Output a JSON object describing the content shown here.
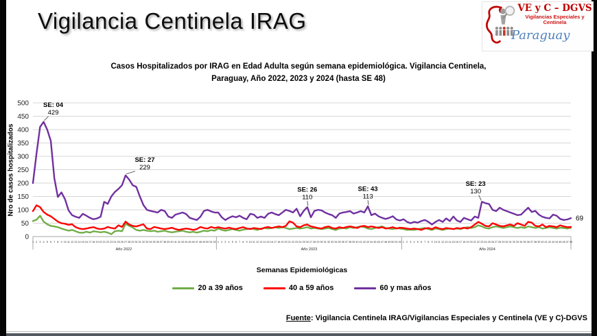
{
  "page": {
    "title": "Vigilancia Centinela IRAG",
    "logo": {
      "line1": "VE y C – DGVS",
      "line2": "Vigilancias Especiales y Centinela",
      "line3": "Paraguay"
    },
    "footer": {
      "label": "Fuente",
      "rest": ": Vigilancia  Centinela IRAG/Vigilancias Especiales y Centinela (VE y C)-DGVS"
    }
  },
  "chart_data": {
    "type": "line",
    "title_lines": [
      "Casos Hospitalizados por IRAG en Edad Adulta según semana epidemiológica. Vigilancia Centinela,",
      "Paraguay, Año 2022, 2023 y 2024 (hasta SE 48)"
    ],
    "ylabel": "Nro de casos hospitalizados",
    "xlabel": "Semanas Epidemiológicas",
    "ylim": [
      0,
      500
    ],
    "yticks": [
      0,
      50,
      100,
      150,
      200,
      250,
      300,
      350,
      400,
      450,
      500
    ],
    "grid": true,
    "legend_position": "bottom",
    "x_groups": [
      {
        "label": "Año 2022",
        "weeks": 52
      },
      {
        "label": "Año 2023",
        "weeks": 52
      },
      {
        "label": "Año 2024",
        "weeks": 48
      }
    ],
    "series": [
      {
        "name": "20 a 39 años",
        "color": "#70AD47",
        "values": [
          58,
          63,
          78,
          56,
          46,
          40,
          38,
          35,
          30,
          26,
          22,
          25,
          20,
          15,
          14,
          18,
          15,
          20,
          18,
          16,
          18,
          15,
          9,
          20,
          22,
          20,
          48,
          40,
          34,
          25,
          22,
          25,
          22,
          20,
          22,
          18,
          20,
          22,
          18,
          16,
          18,
          20,
          22,
          18,
          16,
          18,
          15,
          18,
          22,
          20,
          24,
          22,
          30,
          25,
          22,
          25,
          28,
          25,
          22,
          26,
          28,
          30,
          28,
          25,
          30,
          32,
          30,
          32,
          35,
          32,
          35,
          32,
          28,
          30,
          32,
          30,
          32,
          35,
          30,
          32,
          30,
          28,
          30,
          32,
          28,
          25,
          30,
          32,
          30,
          35,
          32,
          35,
          38,
          35,
          30,
          28,
          32,
          35,
          38,
          32,
          30,
          28,
          32,
          30,
          28,
          25,
          26,
          25,
          28,
          30,
          32,
          28,
          25,
          30,
          28,
          25,
          28,
          30,
          28,
          30,
          28,
          32,
          35,
          32,
          35,
          42,
          38,
          32,
          30,
          35,
          38,
          35,
          32,
          35,
          38,
          35,
          32,
          35,
          32,
          38,
          35,
          32,
          35,
          30,
          32,
          35,
          32,
          30,
          33,
          32,
          30,
          33
        ]
      },
      {
        "name": "40 a 59 años",
        "color": "#FF0000",
        "values": [
          95,
          117,
          110,
          92,
          82,
          76,
          66,
          56,
          50,
          48,
          44,
          46,
          35,
          30,
          28,
          30,
          33,
          35,
          30,
          28,
          30,
          36,
          32,
          30,
          42,
          36,
          56,
          45,
          40,
          38,
          42,
          46,
          30,
          28,
          36,
          33,
          30,
          28,
          30,
          33,
          28,
          25,
          28,
          30,
          28,
          25,
          28,
          36,
          32,
          30,
          36,
          32,
          35,
          32,
          30,
          33,
          30,
          28,
          32,
          35,
          30,
          28,
          32,
          30,
          28,
          33,
          36,
          32,
          35,
          38,
          35,
          40,
          57,
          52,
          38,
          35,
          42,
          45,
          38,
          35,
          32,
          30,
          35,
          38,
          32,
          30,
          35,
          32,
          36,
          38,
          35,
          32,
          38,
          40,
          35,
          38,
          35,
          32,
          35,
          30,
          32,
          35,
          30,
          33,
          32,
          30,
          28,
          30,
          28,
          25,
          30,
          32,
          28,
          35,
          30,
          28,
          32,
          30,
          28,
          32,
          30,
          33,
          30,
          35,
          45,
          55,
          48,
          40,
          38,
          50,
          45,
          40,
          38,
          42,
          45,
          40,
          50,
          45,
          40,
          55,
          52,
          40,
          38,
          45,
          35,
          40,
          38,
          35,
          42,
          38,
          35,
          36
        ]
      },
      {
        "name": "60 y mas años",
        "color": "#7030A0",
        "values": [
          200,
          310,
          410,
          429,
          400,
          358,
          218,
          148,
          165,
          140,
          98,
          80,
          74,
          70,
          85,
          78,
          70,
          65,
          68,
          74,
          130,
          122,
          150,
          167,
          178,
          192,
          229,
          213,
          192,
          186,
          150,
          118,
          100,
          96,
          93,
          90,
          100,
          95,
          75,
          70,
          82,
          86,
          90,
          84,
          70,
          66,
          62,
          74,
          96,
          100,
          94,
          90,
          90,
          72,
          62,
          70,
          76,
          72,
          78,
          70,
          65,
          85,
          82,
          70,
          75,
          70,
          85,
          90,
          84,
          80,
          90,
          100,
          96,
          90,
          104,
          76,
          96,
          110,
          72,
          96,
          100,
          98,
          90,
          84,
          80,
          70,
          86,
          90,
          92,
          95,
          86,
          90,
          95,
          90,
          113,
          80,
          86,
          76,
          70,
          66,
          70,
          76,
          64,
          60,
          65,
          55,
          50,
          55,
          52,
          58,
          62,
          55,
          45,
          55,
          62,
          55,
          68,
          58,
          75,
          60,
          55,
          70,
          65,
          60,
          75,
          70,
          130,
          125,
          122,
          100,
          95,
          108,
          100,
          95,
          90,
          85,
          80,
          82,
          95,
          108,
          92,
          96,
          82,
          74,
          70,
          68,
          82,
          78,
          66,
          62,
          64,
          69
        ]
      }
    ],
    "annotations": [
      {
        "se": "SE: 04",
        "value": "429",
        "index": 3,
        "series": 2,
        "dx": 14,
        "vdy": -14
      },
      {
        "se": "SE: 27",
        "value": "229",
        "index": 26,
        "series": 2,
        "dx": 28,
        "vdy": -12
      },
      {
        "se": "SE: 26",
        "value": "110",
        "index": 77,
        "series": 2,
        "dx": 0,
        "vdy": -15
      },
      {
        "se": "SE: 43",
        "value": "113",
        "index": 94,
        "series": 2,
        "dx": 0,
        "vdy": -15
      },
      {
        "se": "SE: 23",
        "value": "130",
        "index": 126,
        "series": 2,
        "dx": -9,
        "vdy": -16
      }
    ],
    "end_label": "69"
  }
}
